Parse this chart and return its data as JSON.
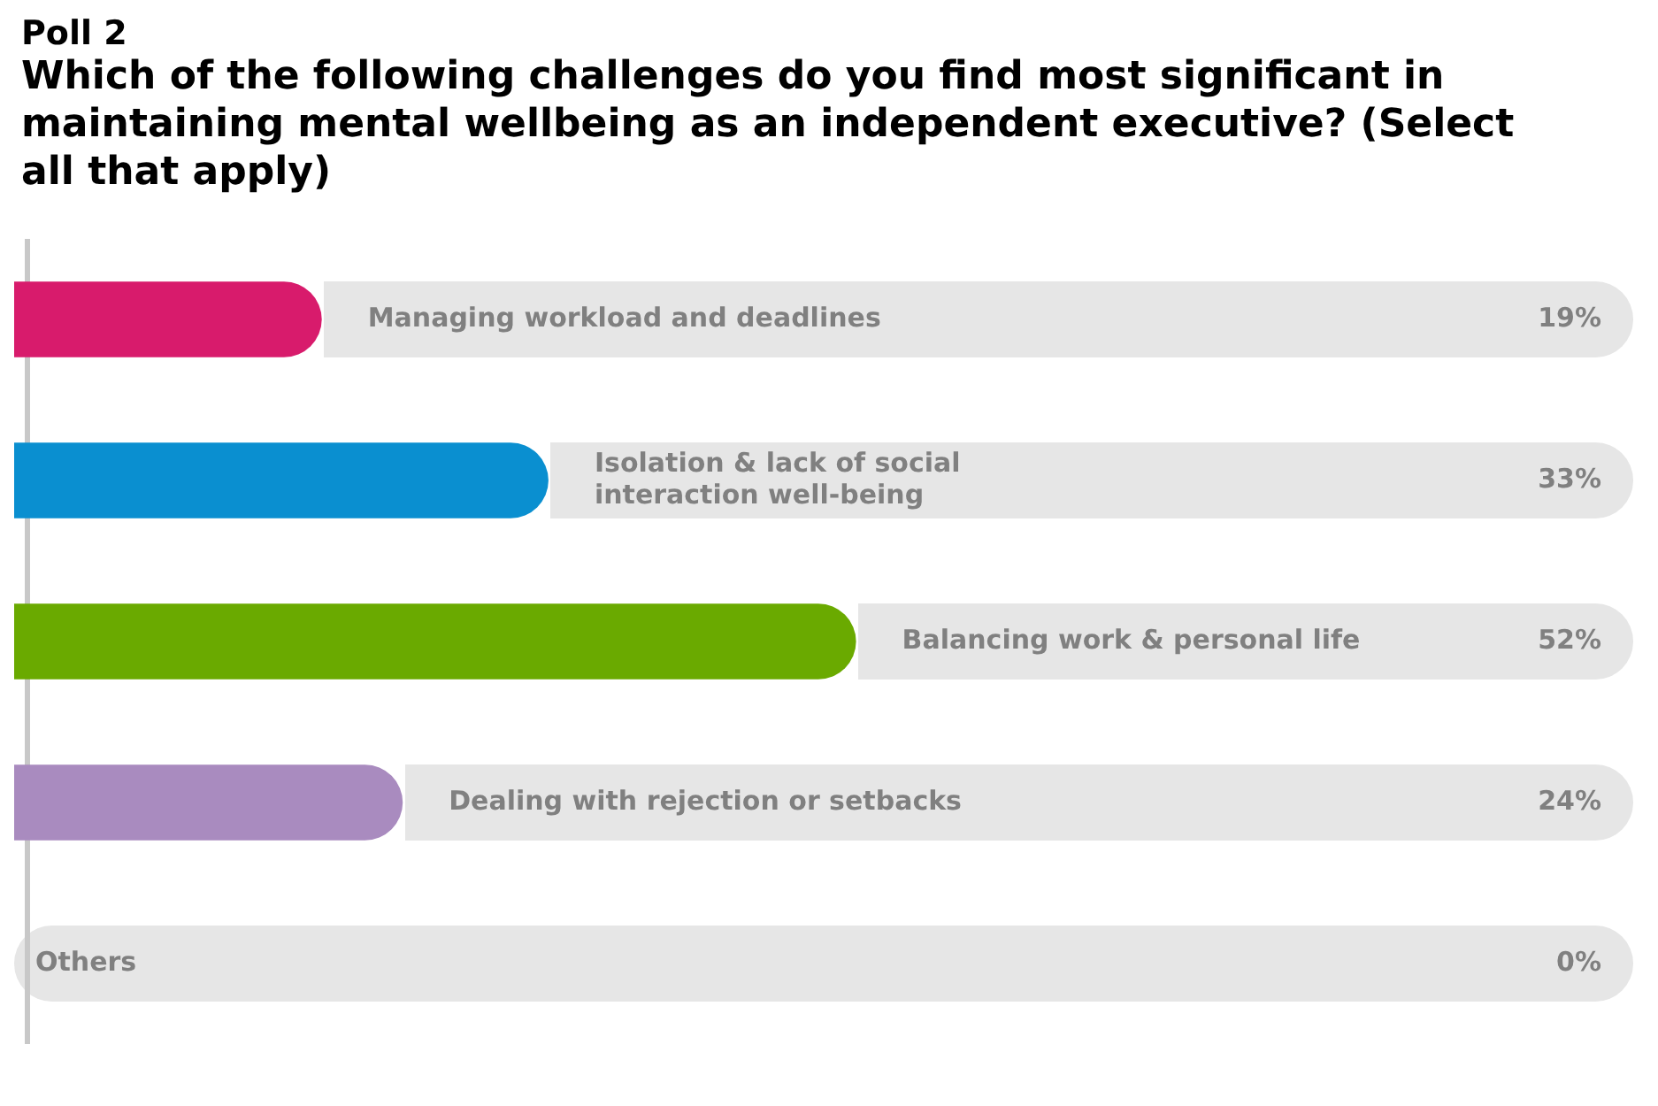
{
  "chart_data": {
    "type": "bar",
    "orientation": "horizontal",
    "title": "Poll 2",
    "subtitle": "Which of the following challenges do you find most significant in maintaining mental wellbeing as an independent executive? (Select all that apply)",
    "categories": [
      "Managing workload and deadlines",
      "Isolation & lack of social interaction well-being",
      "Balancing work & personal life",
      "Dealing with rejection or setbacks",
      "Others"
    ],
    "values": [
      19,
      33,
      52,
      24,
      0
    ],
    "colors": [
      "#d81b6c",
      "#0a8fd0",
      "#6aaa00",
      "#a98bbf",
      "#a98bbf"
    ],
    "value_labels": [
      "19%",
      "33%",
      "52%",
      "24%",
      "0%"
    ],
    "xlim": [
      0,
      100
    ],
    "tick_labels": false,
    "legend": false
  }
}
